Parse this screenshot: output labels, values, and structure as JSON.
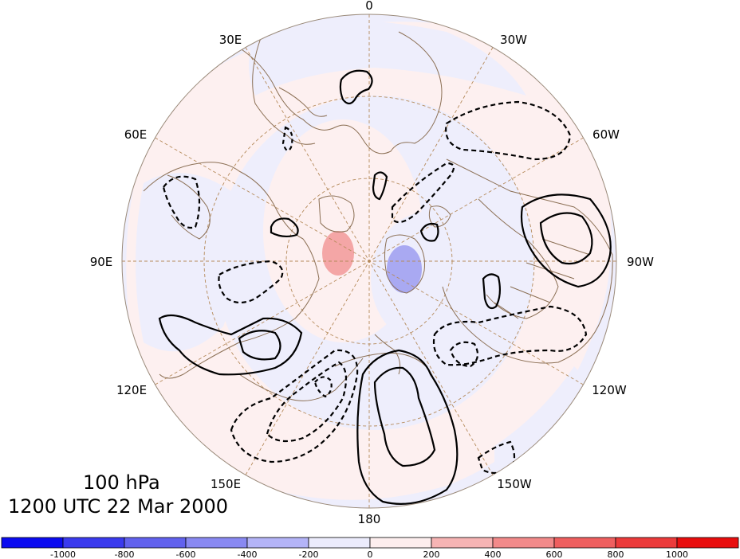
{
  "map": {
    "level_label": "100 hPa",
    "time_label": "1200 UTC 22 Mar 2000",
    "projection": "north-polar-stereographic",
    "longitude_labels": [
      {
        "text": "0",
        "lon": 0
      },
      {
        "text": "30W",
        "lon": -30
      },
      {
        "text": "60W",
        "lon": -60
      },
      {
        "text": "90W",
        "lon": -90
      },
      {
        "text": "120W",
        "lon": -120
      },
      {
        "text": "150W",
        "lon": -150
      },
      {
        "text": "180",
        "lon": 180
      },
      {
        "text": "150E",
        "lon": 150
      },
      {
        "text": "120E",
        "lon": 120
      },
      {
        "text": "90E",
        "lon": 90
      },
      {
        "text": "60E",
        "lon": 60
      },
      {
        "text": "30E",
        "lon": 30
      }
    ],
    "colors": {
      "coastline": "#8b6f54",
      "graticule": "#b58a5a",
      "contour": "#000000",
      "positive_fill_light": "#fdf0f0",
      "negative_fill_light": "#eeeefc",
      "positive_fill_medium": "#f4a6a6",
      "negative_fill_medium": "#a9a9f2"
    }
  },
  "colorbar": {
    "tick_labels": [
      "-1000",
      "-800",
      "-600",
      "-400",
      "-200",
      "0",
      "200",
      "400",
      "600",
      "800",
      "1000"
    ],
    "colors": [
      "#0b0bf0",
      "#3a3aee",
      "#6262ee",
      "#8989f2",
      "#b4b4f7",
      "#ececfc",
      "#fdeeee",
      "#f6b4b4",
      "#f28a8a",
      "#ef5f5f",
      "#ec3a3a",
      "#e80d0d"
    ]
  }
}
